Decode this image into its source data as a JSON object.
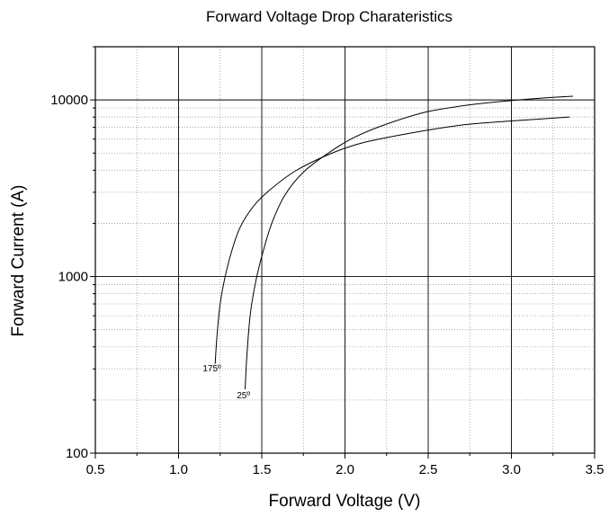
{
  "chart_data": {
    "type": "line",
    "title": "Forward Voltage Drop Charateristics",
    "xlabel": "Forward Voltage (V)",
    "ylabel": "Forward Current (A)",
    "xlim": [
      0.5,
      3.5
    ],
    "ylim": [
      100,
      20000
    ],
    "yscale": "log",
    "grid": true,
    "legend": "none",
    "x_ticks": [
      0.5,
      1.0,
      1.5,
      2.0,
      2.5,
      3.0,
      3.5
    ],
    "x_tick_labels": [
      "0.5",
      "1.0",
      "1.5",
      "2.0",
      "2.5",
      "3.0",
      "3.5"
    ],
    "y_ticks": [
      100,
      1000,
      10000
    ],
    "y_tick_labels": [
      "100",
      "1000",
      "10000"
    ],
    "series": [
      {
        "label": "175º",
        "x": [
          1.22,
          1.23,
          1.25,
          1.28,
          1.32,
          1.37,
          1.45,
          1.55,
          1.7,
          1.9,
          2.1,
          2.4,
          2.7,
          3.0,
          3.35
        ],
        "y": [
          320,
          450,
          700,
          1000,
          1400,
          1900,
          2500,
          3100,
          3950,
          4900,
          5700,
          6500,
          7200,
          7600,
          8000
        ]
      },
      {
        "label": "25º",
        "x": [
          1.4,
          1.41,
          1.43,
          1.46,
          1.5,
          1.56,
          1.64,
          1.75,
          1.9,
          2.05,
          2.25,
          2.5,
          2.8,
          3.1,
          3.37
        ],
        "y": [
          230,
          350,
          600,
          900,
          1300,
          2000,
          2900,
          3900,
          5000,
          6100,
          7300,
          8600,
          9500,
          10100,
          10500
        ]
      }
    ],
    "annotations": [
      {
        "text": "175º",
        "x": 1.2,
        "y": 290
      },
      {
        "text": "25º",
        "x": 1.39,
        "y": 205
      }
    ],
    "colors": {
      "curve": "#000000",
      "grid_major": "#000000",
      "grid_minor": "#999999"
    }
  }
}
